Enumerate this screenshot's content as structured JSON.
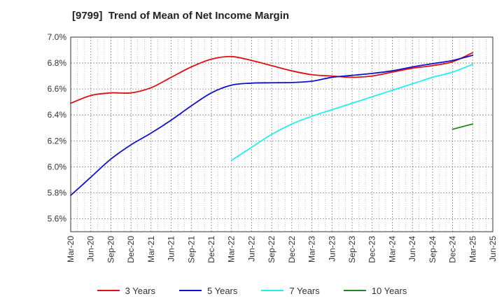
{
  "title": "[9799]  Trend of Mean of Net Income Margin",
  "chart_data": {
    "type": "line",
    "title": "[9799]  Trend of Mean of Net Income Margin",
    "xlabel": "",
    "ylabel": "",
    "x_tick_labels": [
      "Mar-20",
      "Jun-20",
      "Sep-20",
      "Dec-20",
      "Mar-21",
      "Jun-21",
      "Sep-21",
      "Dec-21",
      "Mar-22",
      "Jun-22",
      "Sep-22",
      "Dec-22",
      "Mar-23",
      "Jun-23",
      "Sep-23",
      "Dec-23",
      "Mar-24",
      "Jun-24",
      "Sep-24",
      "Dec-24",
      "Mar-25",
      "Jun-25"
    ],
    "y_ticks": [
      5.6,
      5.8,
      6.0,
      6.2,
      6.4,
      6.6,
      6.8,
      7.0
    ],
    "y_tick_labels": [
      "5.6%",
      "5.8%",
      "6.0%",
      "6.2%",
      "6.4%",
      "6.6%",
      "6.8%",
      "7.0%"
    ],
    "ylim": [
      5.5,
      7.0
    ],
    "grid": true,
    "legend_position": "bottom",
    "series": [
      {
        "name": "3 Years",
        "color": "#dd1111",
        "points": [
          [
            "Mar-20",
            6.49
          ],
          [
            "Jun-20",
            6.55
          ],
          [
            "Sep-20",
            6.57
          ],
          [
            "Dec-20",
            6.57
          ],
          [
            "Mar-21",
            6.61
          ],
          [
            "Jun-21",
            6.69
          ],
          [
            "Sep-21",
            6.77
          ],
          [
            "Dec-21",
            6.83
          ],
          [
            "Mar-22",
            6.85
          ],
          [
            "Jun-22",
            6.82
          ],
          [
            "Sep-22",
            6.78
          ],
          [
            "Dec-22",
            6.74
          ],
          [
            "Mar-23",
            6.71
          ],
          [
            "Jun-23",
            6.7
          ],
          [
            "Sep-23",
            6.69
          ],
          [
            "Dec-23",
            6.7
          ],
          [
            "Mar-24",
            6.73
          ],
          [
            "Jun-24",
            6.76
          ],
          [
            "Sep-24",
            6.78
          ],
          [
            "Dec-24",
            6.81
          ],
          [
            "Mar-25",
            6.88
          ]
        ]
      },
      {
        "name": "5 Years",
        "color": "#1111cc",
        "points": [
          [
            "Mar-20",
            5.78
          ],
          [
            "Jun-20",
            5.92
          ],
          [
            "Sep-20",
            6.06
          ],
          [
            "Dec-20",
            6.17
          ],
          [
            "Mar-21",
            6.26
          ],
          [
            "Jun-21",
            6.36
          ],
          [
            "Sep-21",
            6.47
          ],
          [
            "Dec-21",
            6.57
          ],
          [
            "Mar-22",
            6.63
          ],
          [
            "Jun-22",
            6.645
          ],
          [
            "Sep-22",
            6.648
          ],
          [
            "Dec-22",
            6.65
          ],
          [
            "Mar-23",
            6.66
          ],
          [
            "Jun-23",
            6.69
          ],
          [
            "Sep-23",
            6.705
          ],
          [
            "Dec-23",
            6.72
          ],
          [
            "Mar-24",
            6.74
          ],
          [
            "Jun-24",
            6.77
          ],
          [
            "Sep-24",
            6.795
          ],
          [
            "Dec-24",
            6.82
          ],
          [
            "Mar-25",
            6.86
          ]
        ]
      },
      {
        "name": "7 Years",
        "color": "#22eeee",
        "points": [
          [
            "Mar-22",
            6.05
          ],
          [
            "Jun-22",
            6.15
          ],
          [
            "Sep-22",
            6.25
          ],
          [
            "Dec-22",
            6.33
          ],
          [
            "Mar-23",
            6.39
          ],
          [
            "Jun-23",
            6.44
          ],
          [
            "Sep-23",
            6.49
          ],
          [
            "Dec-23",
            6.54
          ],
          [
            "Mar-24",
            6.59
          ],
          [
            "Jun-24",
            6.64
          ],
          [
            "Sep-24",
            6.69
          ],
          [
            "Dec-24",
            6.73
          ],
          [
            "Mar-25",
            6.79
          ]
        ]
      },
      {
        "name": "10 Years",
        "color": "#228822",
        "points": [
          [
            "Dec-24",
            6.29
          ],
          [
            "Mar-25",
            6.33
          ]
        ]
      }
    ]
  }
}
